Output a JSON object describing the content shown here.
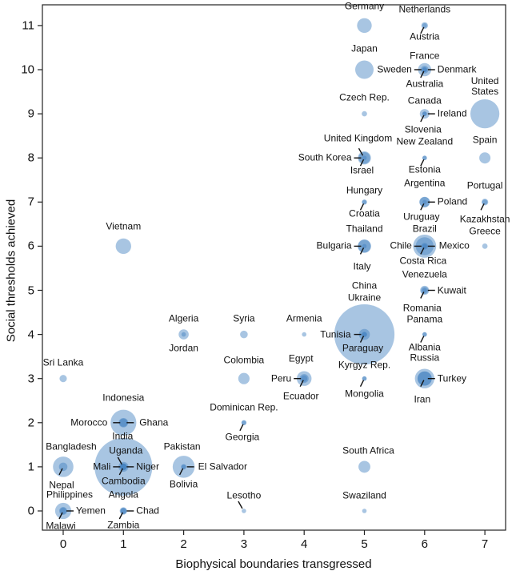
{
  "chart_data": {
    "type": "scatter",
    "xlabel": "Biophysical boundaries transgressed",
    "ylabel": "Social thresholds achieved",
    "xlim": [
      -0.35,
      7.35
    ],
    "ylim": [
      -0.45,
      11.45
    ],
    "xticks": [
      "0",
      "1",
      "2",
      "3",
      "4",
      "5",
      "6",
      "7"
    ],
    "yticks": [
      "0",
      "1",
      "2",
      "3",
      "4",
      "5",
      "6",
      "7",
      "8",
      "9",
      "10",
      "11"
    ],
    "bubble_size": "population (millions, estimated)",
    "color": "#3f7fbf",
    "clusters": [
      {
        "x": 5,
        "y": 11,
        "countries": [
          {
            "name": "Germany",
            "pop": 81
          }
        ]
      },
      {
        "x": 6,
        "y": 11,
        "countries": [
          {
            "name": "Netherlands",
            "pop": 17
          },
          {
            "name": "Austria",
            "pop": 8.5
          }
        ]
      },
      {
        "x": 5,
        "y": 10,
        "countries": [
          {
            "name": "Japan",
            "pop": 127
          }
        ]
      },
      {
        "x": 6,
        "y": 10,
        "countries": [
          {
            "name": "France",
            "pop": 66
          },
          {
            "name": "Sweden",
            "pop": 10
          },
          {
            "name": "Denmark",
            "pop": 5.6
          },
          {
            "name": "Australia",
            "pop": 23
          }
        ]
      },
      {
        "x": 7,
        "y": 9,
        "countries": [
          {
            "name": "United States",
            "pop": 316
          }
        ]
      },
      {
        "x": 5,
        "y": 9,
        "countries": [
          {
            "name": "Czech Rep.",
            "pop": 10.5
          }
        ]
      },
      {
        "x": 6,
        "y": 9,
        "countries": [
          {
            "name": "Canada",
            "pop": 35
          },
          {
            "name": "Ireland",
            "pop": 4.6
          },
          {
            "name": "Slovenia",
            "pop": 2
          }
        ]
      },
      {
        "x": 5,
        "y": 8,
        "countries": [
          {
            "name": "United Kingdom",
            "pop": 64
          },
          {
            "name": "South Korea",
            "pop": 50
          },
          {
            "name": "Israel",
            "pop": 8
          }
        ]
      },
      {
        "x": 6,
        "y": 8,
        "countries": [
          {
            "name": "New Zealand",
            "pop": 4.5
          },
          {
            "name": "Estonia",
            "pop": 1.3
          }
        ]
      },
      {
        "x": 7,
        "y": 8,
        "countries": [
          {
            "name": "Spain",
            "pop": 47
          }
        ]
      },
      {
        "x": 5,
        "y": 7,
        "countries": [
          {
            "name": "Hungary",
            "pop": 10
          },
          {
            "name": "Croatia",
            "pop": 4.3
          }
        ]
      },
      {
        "x": 6,
        "y": 7,
        "countries": [
          {
            "name": "Argentina",
            "pop": 42
          },
          {
            "name": "Poland",
            "pop": 38
          },
          {
            "name": "Uruguay",
            "pop": 3.4
          }
        ]
      },
      {
        "x": 7,
        "y": 7,
        "countries": [
          {
            "name": "Portugal",
            "pop": 10.5
          },
          {
            "name": "Kazakhstan",
            "pop": 17
          }
        ]
      },
      {
        "x": 1,
        "y": 6,
        "countries": [
          {
            "name": "Vietnam",
            "pop": 90
          }
        ]
      },
      {
        "x": 5,
        "y": 6,
        "countries": [
          {
            "name": "Thailand",
            "pop": 67
          },
          {
            "name": "Bulgaria",
            "pop": 7
          },
          {
            "name": "Italy",
            "pop": 60
          }
        ]
      },
      {
        "x": 6,
        "y": 6,
        "countries": [
          {
            "name": "Brazil",
            "pop": 200
          },
          {
            "name": "Chile",
            "pop": 17
          },
          {
            "name": "Mexico",
            "pop": 120
          },
          {
            "name": "Costa Rica",
            "pop": 5
          }
        ]
      },
      {
        "x": 7,
        "y": 6,
        "countries": [
          {
            "name": "Greece",
            "pop": 11
          }
        ]
      },
      {
        "x": 6,
        "y": 5,
        "countries": [
          {
            "name": "Venezuela",
            "pop": 30
          },
          {
            "name": "Kuwait",
            "pop": 3.4
          },
          {
            "name": "Romania",
            "pop": 20
          }
        ]
      },
      {
        "x": 2,
        "y": 4,
        "countries": [
          {
            "name": "Algeria",
            "pop": 38
          },
          {
            "name": "Jordan",
            "pop": 6.5
          }
        ]
      },
      {
        "x": 3,
        "y": 4,
        "countries": [
          {
            "name": "Syria",
            "pop": 22
          }
        ]
      },
      {
        "x": 4,
        "y": 4,
        "countries": [
          {
            "name": "Armenia",
            "pop": 3
          }
        ]
      },
      {
        "x": 5,
        "y": 4,
        "countries": [
          {
            "name": "China",
            "pop": 1360
          },
          {
            "name": "Ukraine",
            "pop": 45
          },
          {
            "name": "Tunisia",
            "pop": 11
          },
          {
            "name": "Paraguay",
            "pop": 6.8
          }
        ]
      },
      {
        "x": 6,
        "y": 4,
        "countries": [
          {
            "name": "Panama",
            "pop": 3.8
          },
          {
            "name": "Albania",
            "pop": 2.9
          }
        ]
      },
      {
        "x": 0,
        "y": 3,
        "countries": [
          {
            "name": "Sri Lanka",
            "pop": 20
          }
        ]
      },
      {
        "x": 3,
        "y": 3,
        "countries": [
          {
            "name": "Colombia",
            "pop": 48
          }
        ]
      },
      {
        "x": 4,
        "y": 3,
        "countries": [
          {
            "name": "Egypt",
            "pop": 82
          },
          {
            "name": "Peru",
            "pop": 30
          },
          {
            "name": "Ecuador",
            "pop": 15
          }
        ]
      },
      {
        "x": 5,
        "y": 3,
        "countries": [
          {
            "name": "Kyrgyz Rep.",
            "pop": 5.7
          },
          {
            "name": "Mongolia",
            "pop": 2.8
          }
        ]
      },
      {
        "x": 6,
        "y": 3,
        "countries": [
          {
            "name": "Russia",
            "pop": 143
          },
          {
            "name": "Turkey",
            "pop": 75
          },
          {
            "name": "Iran",
            "pop": 77
          }
        ]
      },
      {
        "x": 1,
        "y": 2,
        "countries": [
          {
            "name": "Indonesia",
            "pop": 250
          },
          {
            "name": "Morocco",
            "pop": 33
          },
          {
            "name": "Ghana",
            "pop": 26
          }
        ]
      },
      {
        "x": 3,
        "y": 2,
        "countries": [
          {
            "name": "Dominican Rep.",
            "pop": 10
          },
          {
            "name": "Georgia",
            "pop": 4.5
          }
        ]
      },
      {
        "x": 0,
        "y": 1,
        "countries": [
          {
            "name": "Bangladesh",
            "pop": 157
          },
          {
            "name": "Nepal",
            "pop": 27
          }
        ]
      },
      {
        "x": 1,
        "y": 1,
        "countries": [
          {
            "name": "India",
            "pop": 1250
          },
          {
            "name": "Uganda",
            "pop": 37
          },
          {
            "name": "Mali",
            "pop": 15
          },
          {
            "name": "Niger",
            "pop": 18
          },
          {
            "name": "Cambodia",
            "pop": 15
          }
        ]
      },
      {
        "x": 2,
        "y": 1,
        "countries": [
          {
            "name": "Pakistan",
            "pop": 182
          },
          {
            "name": "El Salvador",
            "pop": 6.3
          },
          {
            "name": "Bolivia",
            "pop": 10.7
          }
        ]
      },
      {
        "x": 5,
        "y": 1,
        "countries": [
          {
            "name": "South Africa",
            "pop": 53
          }
        ]
      },
      {
        "x": 0,
        "y": 0,
        "countries": [
          {
            "name": "Philippines",
            "pop": 98
          },
          {
            "name": "Yemen",
            "pop": 24
          },
          {
            "name": "Malawi",
            "pop": 16
          }
        ]
      },
      {
        "x": 1,
        "y": 0,
        "countries": [
          {
            "name": "Angola",
            "pop": 21
          },
          {
            "name": "Chad",
            "pop": 13
          },
          {
            "name": "Zambia",
            "pop": 14
          }
        ]
      },
      {
        "x": 3,
        "y": 0,
        "countries": [
          {
            "name": "Lesotho",
            "pop": 2
          }
        ]
      },
      {
        "x": 5,
        "y": 0,
        "countries": [
          {
            "name": "Swaziland",
            "pop": 1.2
          }
        ]
      }
    ]
  }
}
